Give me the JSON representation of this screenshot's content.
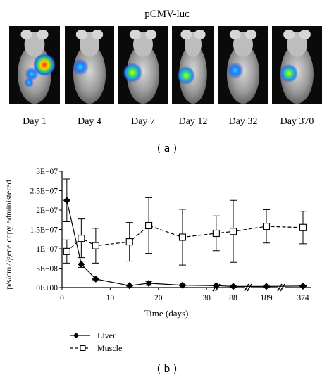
{
  "panel_a": {
    "title": "pCMV-luc",
    "days": [
      "Day 1",
      "Day 4",
      "Day 7",
      "Day 12",
      "Day 32",
      "Day 370"
    ],
    "caption": "( a )"
  },
  "panel_b": {
    "caption": "( b )"
  },
  "chart_data": {
    "type": "line",
    "ylabel": "p/s/cm2/gene copy administered",
    "xlabel": "Time (days)",
    "ylim": [
      0,
      3e-07
    ],
    "y_ticks": [
      "0E+00",
      "5E−08",
      "1E−07",
      "1.5E−07",
      "2E−07",
      "2.5E−07",
      "3E−07"
    ],
    "x_ticks": [
      "0",
      "10",
      "20",
      "30",
      "88",
      "189",
      "374"
    ],
    "grid": false,
    "legend_position": "bottom-left",
    "series": [
      {
        "name": "Liver",
        "marker": "filled-diamond",
        "line": "solid",
        "points": [
          {
            "x": 1,
            "y": 2.25e-07,
            "err": 5.5e-08
          },
          {
            "x": 4,
            "y": 6e-08,
            "err": 8e-09
          },
          {
            "x": 7,
            "y": 2.2e-08,
            "err": 2e-09
          },
          {
            "x": 14,
            "y": 5e-09,
            "err": 1e-09
          },
          {
            "x": 18,
            "y": 1.1e-08,
            "err": 5e-09
          },
          {
            "x": 25,
            "y": 6e-09,
            "err": 1e-09
          },
          {
            "x": 32,
            "y": 5e-09,
            "err": 1e-09
          },
          {
            "x": 88,
            "y": 3e-09,
            "err": 1e-09
          },
          {
            "x": 189,
            "y": 3e-09,
            "err": 1e-09
          },
          {
            "x": 370,
            "y": 4e-09,
            "err": 1e-09
          }
        ]
      },
      {
        "name": "Muscle",
        "marker": "open-square",
        "line": "dashed",
        "points": [
          {
            "x": 1,
            "y": 9.3e-08,
            "err": 3e-08
          },
          {
            "x": 4,
            "y": 1.27e-07,
            "err": 5e-08
          },
          {
            "x": 7,
            "y": 1.08e-07,
            "err": 4.5e-08
          },
          {
            "x": 14,
            "y": 1.18e-07,
            "err": 5e-08
          },
          {
            "x": 18,
            "y": 1.6e-07,
            "err": 7.2e-08
          },
          {
            "x": 25,
            "y": 1.3e-07,
            "err": 7.2e-08
          },
          {
            "x": 32,
            "y": 1.4e-07,
            "err": 4.5e-08
          },
          {
            "x": 88,
            "y": 1.45e-07,
            "err": 8e-08
          },
          {
            "x": 189,
            "y": 1.58e-07,
            "err": 4.3e-08
          },
          {
            "x": 370,
            "y": 1.55e-07,
            "err": 4.2e-08
          }
        ]
      }
    ]
  }
}
